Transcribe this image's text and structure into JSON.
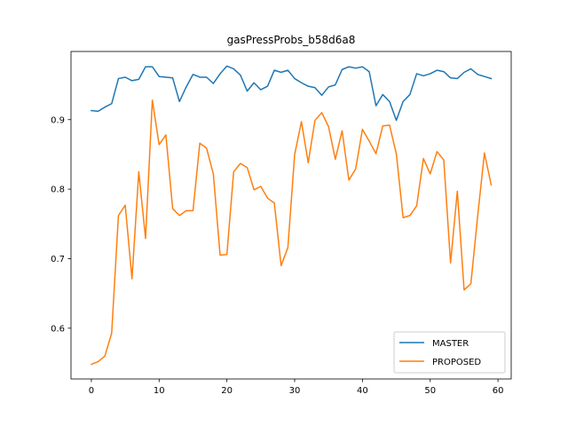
{
  "chart_data": {
    "type": "line",
    "title": "gasPressProbs_b58d6a8",
    "xlabel": "",
    "ylabel": "",
    "x": [
      0,
      1,
      2,
      3,
      4,
      5,
      6,
      7,
      8,
      9,
      10,
      11,
      12,
      13,
      14,
      15,
      16,
      17,
      18,
      19,
      20,
      21,
      22,
      23,
      24,
      25,
      26,
      27,
      28,
      29,
      30,
      31,
      32,
      33,
      34,
      35,
      36,
      37,
      38,
      39,
      40,
      41,
      42,
      43,
      44,
      45,
      46,
      47,
      48,
      49,
      50,
      51,
      52,
      53,
      54,
      55,
      56,
      57,
      58,
      59
    ],
    "xlim": [
      -3.0,
      61.95
    ],
    "ylim": [
      0.527,
      0.998
    ],
    "xticks": [
      0,
      10,
      20,
      30,
      40,
      50,
      60
    ],
    "yticks": [
      0.6,
      0.7,
      0.8,
      0.9
    ],
    "xtick_labels": [
      "0",
      "10",
      "20",
      "30",
      "40",
      "50",
      "60"
    ],
    "ytick_labels": [
      "0.6",
      "0.7",
      "0.8",
      "0.9"
    ],
    "legend_position": "lower-right",
    "grid": false,
    "series": [
      {
        "name": "MASTER",
        "color": "#1f77b4",
        "values": [
          0.913,
          0.912,
          0.918,
          0.923,
          0.959,
          0.961,
          0.956,
          0.958,
          0.976,
          0.976,
          0.962,
          0.961,
          0.96,
          0.926,
          0.947,
          0.965,
          0.961,
          0.961,
          0.952,
          0.966,
          0.977,
          0.973,
          0.964,
          0.941,
          0.953,
          0.943,
          0.948,
          0.971,
          0.968,
          0.971,
          0.959,
          0.953,
          0.948,
          0.946,
          0.935,
          0.947,
          0.95,
          0.972,
          0.976,
          0.974,
          0.976,
          0.969,
          0.92,
          0.936,
          0.926,
          0.899,
          0.926,
          0.936,
          0.966,
          0.963,
          0.966,
          0.971,
          0.969,
          0.96,
          0.959,
          0.968,
          0.973,
          0.965,
          0.962,
          0.959
        ]
      },
      {
        "name": "PROPOSED",
        "color": "#ff7f0e",
        "values": [
          0.548,
          0.552,
          0.56,
          0.593,
          0.762,
          0.777,
          0.671,
          0.825,
          0.729,
          0.928,
          0.864,
          0.878,
          0.772,
          0.762,
          0.769,
          0.769,
          0.866,
          0.859,
          0.822,
          0.705,
          0.706,
          0.825,
          0.837,
          0.831,
          0.799,
          0.804,
          0.787,
          0.78,
          0.69,
          0.716,
          0.85,
          0.897,
          0.838,
          0.899,
          0.91,
          0.89,
          0.843,
          0.884,
          0.813,
          0.829,
          0.886,
          0.869,
          0.851,
          0.891,
          0.892,
          0.851,
          0.759,
          0.762,
          0.776,
          0.844,
          0.822,
          0.854,
          0.842,
          0.694,
          0.797,
          0.655,
          0.664,
          0.761,
          0.852,
          0.806
        ]
      }
    ]
  }
}
